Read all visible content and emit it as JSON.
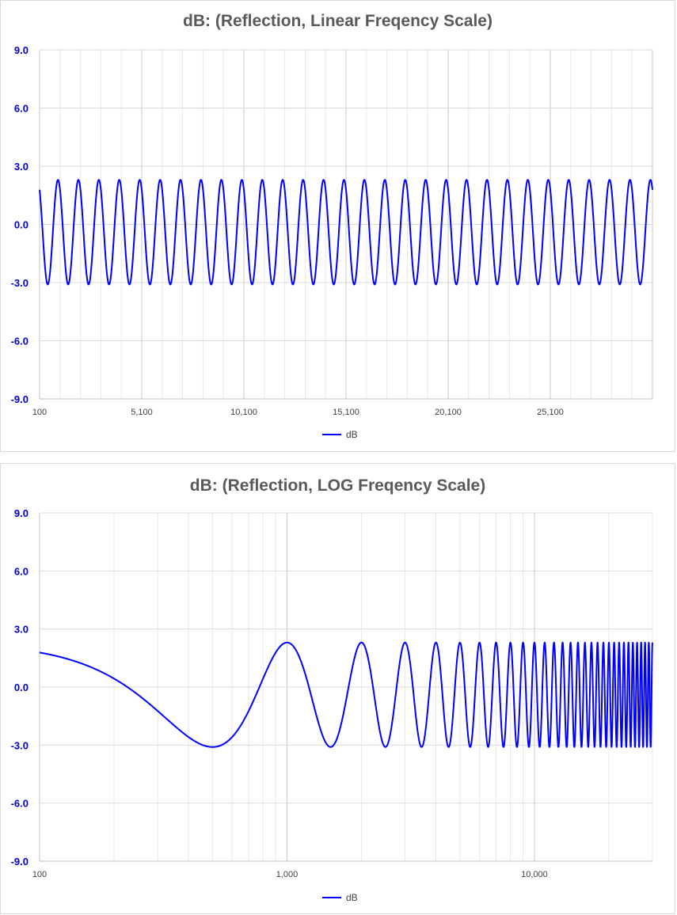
{
  "chart_data": [
    {
      "type": "line",
      "title": "dB: (Reflection, Linear Freqency Scale)",
      "xscale": "linear",
      "xlim": [
        100,
        30100
      ],
      "ylim": [
        -9,
        9
      ],
      "grid": true,
      "legend_position": "bottom",
      "y_ticks": [
        "9.0",
        "6.0",
        "3.0",
        "0.0",
        "-3.0",
        "-6.0",
        "-9.0"
      ],
      "x_ticks": [
        "100",
        "5,100",
        "10,100",
        "15,100",
        "20,100",
        "25,100"
      ],
      "line_color": "#0000ff",
      "series": [
        {
          "name": "dB",
          "description": "ripple between about -3.0 and +2.3 dB, period about 1000 Hz",
          "x": [
            100,
            600,
            1100,
            2100,
            3100,
            4100,
            5100,
            6100,
            7100,
            8100,
            9100,
            10100,
            11100,
            12100,
            13100,
            14100,
            15100,
            16100,
            17100,
            18100,
            19100,
            20100,
            21100,
            22100,
            23100,
            24100,
            25100,
            26100,
            27100,
            28100,
            29100,
            30100
          ],
          "y": [
            2.0,
            -3.1,
            2.3,
            2.3,
            2.3,
            2.3,
            2.3,
            2.3,
            2.3,
            2.3,
            2.3,
            2.3,
            2.3,
            2.3,
            2.3,
            2.3,
            2.3,
            2.3,
            2.3,
            2.3,
            2.3,
            2.3,
            2.3,
            2.1,
            2.3,
            2.3,
            2.3,
            2.3,
            2.0,
            2.3,
            2.3,
            1.6
          ]
        }
      ]
    },
    {
      "type": "line",
      "title": "dB: (Reflection, LOG Freqency Scale)",
      "xscale": "log",
      "xlim": [
        100,
        30000
      ],
      "ylim": [
        -9,
        9
      ],
      "grid": true,
      "legend_position": "bottom",
      "y_ticks": [
        "9.0",
        "6.0",
        "3.0",
        "0.0",
        "-3.0",
        "-6.0",
        "-9.0"
      ],
      "x_ticks": [
        "100",
        "1,000",
        "10,000"
      ],
      "line_color": "#0000ff",
      "series": [
        {
          "name": "dB",
          "x": [
            100,
            200,
            300,
            500,
            700,
            1000,
            1500,
            2000,
            2500,
            3000,
            3500,
            4000
          ],
          "y": [
            2.0,
            1.0,
            -0.6,
            -3.1,
            -0.6,
            2.3,
            -3.1,
            2.3,
            -3.1,
            2.3,
            -3.1,
            2.3
          ]
        }
      ]
    }
  ],
  "legend_label": "dB"
}
